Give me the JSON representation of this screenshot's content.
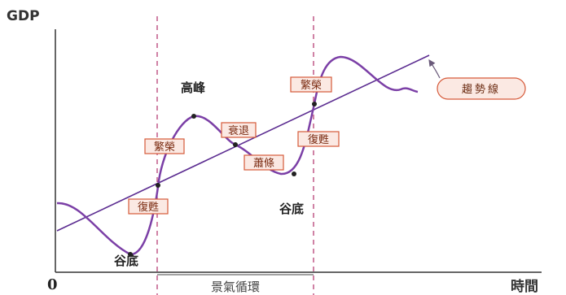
{
  "axes": {
    "y_label": "GDP",
    "x_label": "時間",
    "origin": "0"
  },
  "labels": {
    "peak": "高峰",
    "trough_left": "谷底",
    "trough_right": "谷底"
  },
  "boxes": {
    "recovery_left": "復甦",
    "prosperity_left": "繁榮",
    "recession": "衰退",
    "depression": "蕭條",
    "recovery_right": "復甦",
    "prosperity_right": "繁榮"
  },
  "cycle_label": "景氣循環",
  "trend_label": "趨勢線",
  "colors": {
    "curve": "#7b3fa6",
    "trend": "#5c2d91",
    "dashed": "#b0306a",
    "box_border": "#d65a3a",
    "box_fill": "#fbe9e3",
    "point": "#222222"
  }
}
